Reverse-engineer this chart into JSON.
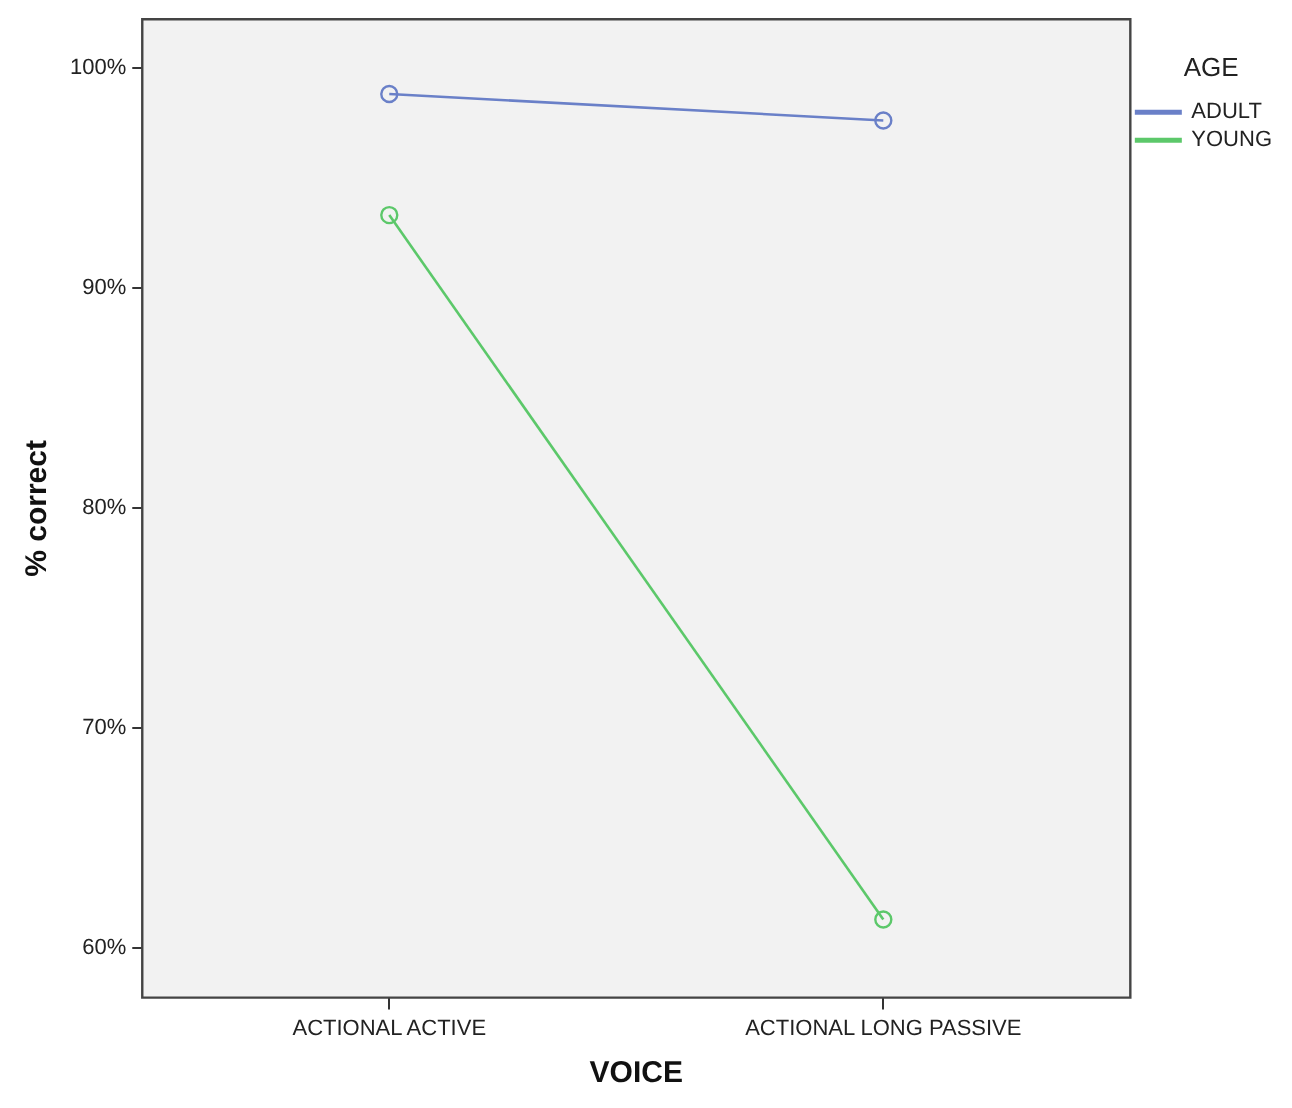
{
  "chart_data": {
    "type": "line",
    "xlabel": "VOICE",
    "ylabel": "% correct",
    "legend_title": "AGE",
    "categories": [
      "ACTIONAL ACTIVE",
      "ACTIONAL LONG PASSIVE"
    ],
    "series": [
      {
        "name": "ADULT",
        "color": "#6a80c8",
        "values": [
          98.8,
          97.6
        ]
      },
      {
        "name": "YOUNG",
        "color": "#5cc86a",
        "values": [
          93.3,
          61.3
        ]
      }
    ],
    "ylim": [
      57.75,
      102.2
    ],
    "yticks": [
      {
        "value": 60,
        "label": "60%"
      },
      {
        "value": 70,
        "label": "70%"
      },
      {
        "value": 80,
        "label": "80%"
      },
      {
        "value": 90,
        "label": "90%"
      },
      {
        "value": 100,
        "label": "100%"
      }
    ],
    "grid": false,
    "legend": "top right",
    "marker": "circle",
    "line_style": "solid"
  }
}
